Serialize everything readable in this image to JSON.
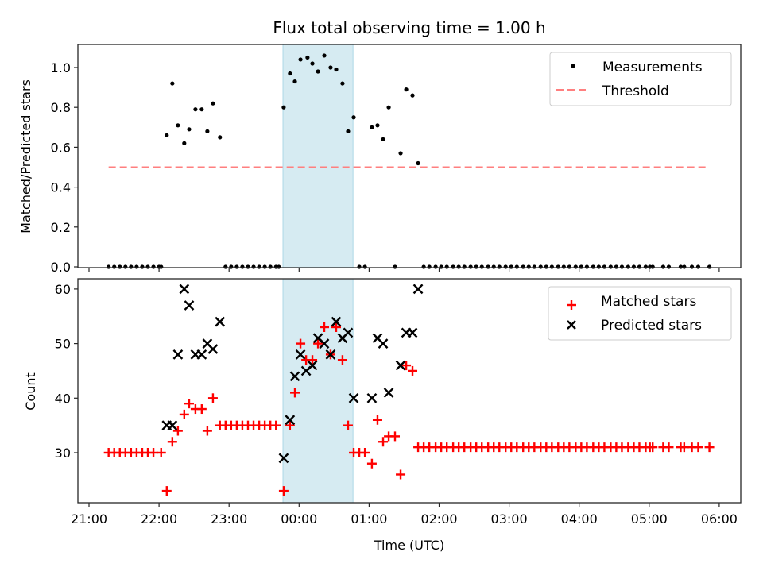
{
  "chart_data": [
    {
      "type": "scatter",
      "title": "Flux total observing time = 1.00 h",
      "xlabel": "",
      "ylabel": "Matched/Predicted stars",
      "ylim": [
        0,
        1.1
      ],
      "yticks": [
        "0.0",
        "0.2",
        "0.4",
        "0.6",
        "0.8",
        "1.0"
      ],
      "ytick_values": [
        0,
        0.2,
        0.4,
        0.6,
        0.8,
        1.0
      ],
      "x_unit": "hours since 21:00 UTC",
      "xlim": [
        -0.16,
        9.3
      ],
      "xtick_values": [
        0,
        1,
        2,
        3,
        4,
        5,
        6,
        7,
        8,
        9
      ],
      "shaded_interval": {
        "start": 2.77,
        "end": 3.77,
        "color": "#add8e6"
      },
      "legend": {
        "placement": "top-right",
        "entries": [
          "Measurements",
          "Threshold"
        ]
      },
      "threshold": {
        "name": "Threshold",
        "value": 0.5,
        "x_start": 0.28,
        "x_end": 8.86,
        "color": "#ff7f7f"
      },
      "series": [
        {
          "name": "Measurements",
          "color": "#000000",
          "points": [
            [
              0.28,
              0
            ],
            [
              0.36,
              0
            ],
            [
              0.44,
              0
            ],
            [
              0.52,
              0
            ],
            [
              0.6,
              0
            ],
            [
              0.68,
              0
            ],
            [
              0.76,
              0
            ],
            [
              0.84,
              0
            ],
            [
              0.92,
              0
            ],
            [
              1.0,
              0
            ],
            [
              1.03,
              0
            ],
            [
              1.11,
              0.66
            ],
            [
              1.19,
              0.92
            ],
            [
              1.27,
              0.71
            ],
            [
              1.36,
              0.62
            ],
            [
              1.43,
              0.69
            ],
            [
              1.52,
              0.79
            ],
            [
              1.61,
              0.79
            ],
            [
              1.69,
              0.68
            ],
            [
              1.77,
              0.82
            ],
            [
              1.87,
              0.65
            ],
            [
              1.95,
              0
            ],
            [
              2.03,
              0
            ],
            [
              2.11,
              0
            ],
            [
              2.19,
              0
            ],
            [
              2.27,
              0
            ],
            [
              2.35,
              0
            ],
            [
              2.43,
              0
            ],
            [
              2.51,
              0
            ],
            [
              2.59,
              0
            ],
            [
              2.67,
              0
            ],
            [
              2.71,
              0
            ],
            [
              2.78,
              0.8
            ],
            [
              2.87,
              0.97
            ],
            [
              2.94,
              0.93
            ],
            [
              3.02,
              1.04
            ],
            [
              3.12,
              1.05
            ],
            [
              3.19,
              1.02
            ],
            [
              3.27,
              0.98
            ],
            [
              3.36,
              1.06
            ],
            [
              3.45,
              1.0
            ],
            [
              3.53,
              0.99
            ],
            [
              3.62,
              0.92
            ],
            [
              3.7,
              0.68
            ],
            [
              3.78,
              0.75
            ],
            [
              3.86,
              0
            ],
            [
              3.94,
              0
            ],
            [
              4.04,
              0.7
            ],
            [
              4.12,
              0.71
            ],
            [
              4.2,
              0.64
            ],
            [
              4.28,
              0.8
            ],
            [
              4.37,
              0
            ],
            [
              4.45,
              0.57
            ],
            [
              4.53,
              0.89
            ],
            [
              4.62,
              0.86
            ],
            [
              4.7,
              0.52
            ],
            [
              4.78,
              0
            ],
            [
              4.86,
              0
            ],
            [
              4.95,
              0
            ],
            [
              5.03,
              0
            ],
            [
              5.11,
              0
            ],
            [
              5.2,
              0
            ],
            [
              5.28,
              0
            ],
            [
              5.36,
              0
            ],
            [
              5.45,
              0
            ],
            [
              5.53,
              0
            ],
            [
              5.61,
              0
            ],
            [
              5.7,
              0
            ],
            [
              5.78,
              0
            ],
            [
              5.86,
              0
            ],
            [
              5.95,
              0
            ],
            [
              6.03,
              0
            ],
            [
              6.11,
              0
            ],
            [
              6.2,
              0
            ],
            [
              6.28,
              0
            ],
            [
              6.36,
              0
            ],
            [
              6.45,
              0
            ],
            [
              6.53,
              0
            ],
            [
              6.61,
              0
            ],
            [
              6.7,
              0
            ],
            [
              6.78,
              0
            ],
            [
              6.86,
              0
            ],
            [
              6.95,
              0
            ],
            [
              7.03,
              0
            ],
            [
              7.11,
              0
            ],
            [
              7.2,
              0
            ],
            [
              7.28,
              0
            ],
            [
              7.36,
              0
            ],
            [
              7.45,
              0
            ],
            [
              7.53,
              0
            ],
            [
              7.61,
              0
            ],
            [
              7.7,
              0
            ],
            [
              7.78,
              0
            ],
            [
              7.86,
              0
            ],
            [
              7.95,
              0
            ],
            [
              8.01,
              0
            ],
            [
              8.05,
              0
            ],
            [
              8.2,
              0
            ],
            [
              8.28,
              0
            ],
            [
              8.45,
              0
            ],
            [
              8.5,
              0
            ],
            [
              8.61,
              0
            ],
            [
              8.7,
              0
            ],
            [
              8.86,
              0
            ]
          ]
        }
      ]
    },
    {
      "type": "scatter",
      "title": "",
      "xlabel": "Time (UTC)",
      "ylabel": "Count",
      "ylim": [
        21,
        62
      ],
      "yticks": [
        "30",
        "40",
        "50",
        "60"
      ],
      "ytick_values": [
        30,
        40,
        50,
        60
      ],
      "x_unit": "hours since 21:00 UTC",
      "xlim": [
        -0.16,
        9.3
      ],
      "xticks": [
        "21:00",
        "22:00",
        "23:00",
        "00:00",
        "01:00",
        "02:00",
        "03:00",
        "04:00",
        "05:00",
        "06:00"
      ],
      "xtick_values": [
        0,
        1,
        2,
        3,
        4,
        5,
        6,
        7,
        8,
        9
      ],
      "shaded_interval": {
        "start": 2.77,
        "end": 3.77,
        "color": "#add8e6"
      },
      "legend": {
        "placement": "top-right",
        "entries": [
          "Matched stars",
          "Predicted stars"
        ]
      },
      "series": [
        {
          "name": "Matched stars",
          "marker": "+",
          "color": "#ff0000",
          "points": [
            [
              0.28,
              30
            ],
            [
              0.36,
              30
            ],
            [
              0.44,
              30
            ],
            [
              0.52,
              30
            ],
            [
              0.6,
              30
            ],
            [
              0.68,
              30
            ],
            [
              0.76,
              30
            ],
            [
              0.84,
              30
            ],
            [
              0.92,
              30
            ],
            [
              1.03,
              30
            ],
            [
              1.11,
              23
            ],
            [
              1.19,
              32
            ],
            [
              1.27,
              34
            ],
            [
              1.36,
              37
            ],
            [
              1.43,
              39
            ],
            [
              1.52,
              38
            ],
            [
              1.61,
              38
            ],
            [
              1.69,
              34
            ],
            [
              1.77,
              40
            ],
            [
              1.87,
              35
            ],
            [
              1.95,
              35
            ],
            [
              2.03,
              35
            ],
            [
              2.11,
              35
            ],
            [
              2.19,
              35
            ],
            [
              2.27,
              35
            ],
            [
              2.35,
              35
            ],
            [
              2.43,
              35
            ],
            [
              2.51,
              35
            ],
            [
              2.59,
              35
            ],
            [
              2.67,
              35
            ],
            [
              2.78,
              23
            ],
            [
              2.87,
              35
            ],
            [
              2.94,
              41
            ],
            [
              3.02,
              50
            ],
            [
              3.1,
              47
            ],
            [
              3.19,
              47
            ],
            [
              3.27,
              50
            ],
            [
              3.36,
              53
            ],
            [
              3.45,
              48
            ],
            [
              3.53,
              53
            ],
            [
              3.62,
              47
            ],
            [
              3.7,
              35
            ],
            [
              3.78,
              30
            ],
            [
              3.86,
              30
            ],
            [
              3.94,
              30
            ],
            [
              4.04,
              28
            ],
            [
              4.12,
              36
            ],
            [
              4.2,
              32
            ],
            [
              4.28,
              33
            ],
            [
              4.37,
              33
            ],
            [
              4.45,
              26
            ],
            [
              4.53,
              46
            ],
            [
              4.62,
              45
            ],
            [
              4.7,
              31
            ],
            [
              4.78,
              31
            ],
            [
              4.86,
              31
            ],
            [
              4.95,
              31
            ],
            [
              5.03,
              31
            ],
            [
              5.11,
              31
            ],
            [
              5.2,
              31
            ],
            [
              5.28,
              31
            ],
            [
              5.36,
              31
            ],
            [
              5.45,
              31
            ],
            [
              5.53,
              31
            ],
            [
              5.61,
              31
            ],
            [
              5.7,
              31
            ],
            [
              5.78,
              31
            ],
            [
              5.86,
              31
            ],
            [
              5.95,
              31
            ],
            [
              6.03,
              31
            ],
            [
              6.11,
              31
            ],
            [
              6.2,
              31
            ],
            [
              6.28,
              31
            ],
            [
              6.36,
              31
            ],
            [
              6.45,
              31
            ],
            [
              6.53,
              31
            ],
            [
              6.61,
              31
            ],
            [
              6.7,
              31
            ],
            [
              6.78,
              31
            ],
            [
              6.86,
              31
            ],
            [
              6.95,
              31
            ],
            [
              7.03,
              31
            ],
            [
              7.11,
              31
            ],
            [
              7.2,
              31
            ],
            [
              7.28,
              31
            ],
            [
              7.36,
              31
            ],
            [
              7.45,
              31
            ],
            [
              7.53,
              31
            ],
            [
              7.61,
              31
            ],
            [
              7.7,
              31
            ],
            [
              7.78,
              31
            ],
            [
              7.86,
              31
            ],
            [
              7.95,
              31
            ],
            [
              8.01,
              31
            ],
            [
              8.05,
              31
            ],
            [
              8.2,
              31
            ],
            [
              8.28,
              31
            ],
            [
              8.45,
              31
            ],
            [
              8.5,
              31
            ],
            [
              8.61,
              31
            ],
            [
              8.7,
              31
            ],
            [
              8.86,
              31
            ]
          ]
        },
        {
          "name": "Predicted stars",
          "marker": "x",
          "color": "#000000",
          "points": [
            [
              1.11,
              35
            ],
            [
              1.19,
              35
            ],
            [
              1.27,
              48
            ],
            [
              1.36,
              60
            ],
            [
              1.43,
              57
            ],
            [
              1.52,
              48
            ],
            [
              1.61,
              48
            ],
            [
              1.69,
              50
            ],
            [
              1.77,
              49
            ],
            [
              1.87,
              54
            ],
            [
              2.78,
              29
            ],
            [
              2.87,
              36
            ],
            [
              2.94,
              44
            ],
            [
              3.02,
              48
            ],
            [
              3.1,
              45
            ],
            [
              3.19,
              46
            ],
            [
              3.27,
              51
            ],
            [
              3.36,
              50
            ],
            [
              3.45,
              48
            ],
            [
              3.53,
              54
            ],
            [
              3.62,
              51
            ],
            [
              3.7,
              52
            ],
            [
              3.78,
              40
            ],
            [
              4.04,
              40
            ],
            [
              4.12,
              51
            ],
            [
              4.2,
              50
            ],
            [
              4.28,
              41
            ],
            [
              4.45,
              46
            ],
            [
              4.53,
              52
            ],
            [
              4.62,
              52
            ],
            [
              4.7,
              60
            ]
          ]
        }
      ]
    }
  ]
}
